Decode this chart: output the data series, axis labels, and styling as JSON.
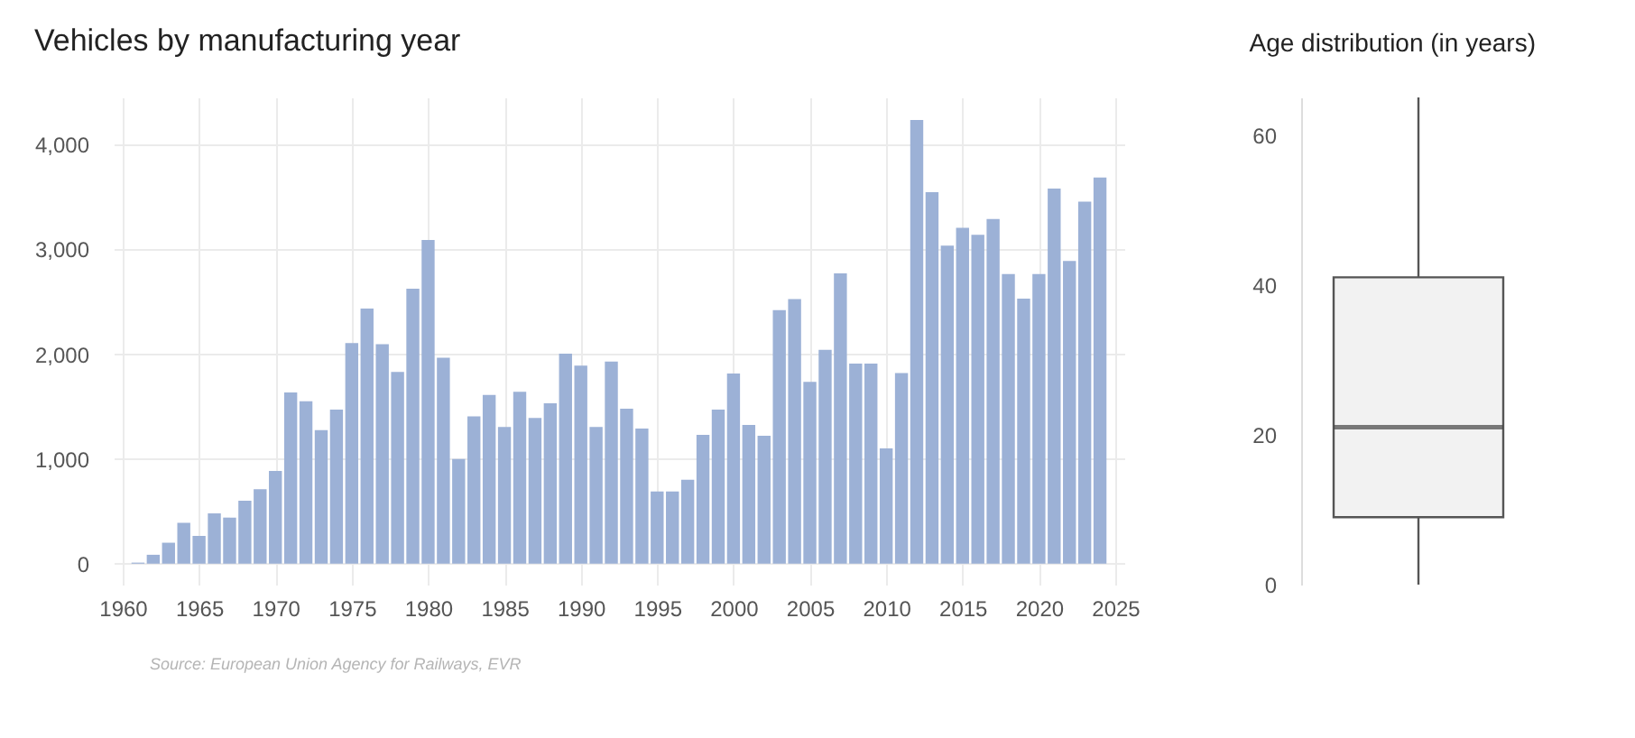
{
  "chart_data": [
    {
      "type": "bar",
      "title": "Vehicles by manufacturing year",
      "x": [
        1961,
        1962,
        1963,
        1964,
        1965,
        1966,
        1967,
        1968,
        1969,
        1970,
        1971,
        1972,
        1973,
        1974,
        1975,
        1976,
        1977,
        1978,
        1979,
        1980,
        1981,
        1982,
        1983,
        1984,
        1985,
        1986,
        1987,
        1988,
        1989,
        1990,
        1991,
        1992,
        1993,
        1994,
        1995,
        1996,
        1997,
        1998,
        1999,
        2000,
        2001,
        2002,
        2003,
        2004,
        2005,
        2006,
        2007,
        2008,
        2009,
        2010,
        2011,
        2012,
        2013,
        2014,
        2015,
        2016,
        2017,
        2018,
        2019,
        2020,
        2021,
        2022,
        2023,
        2024
      ],
      "values": [
        10,
        85,
        200,
        390,
        265,
        480,
        440,
        600,
        710,
        885,
        1635,
        1550,
        1275,
        1470,
        2105,
        2435,
        2095,
        1830,
        2625,
        3090,
        1965,
        1000,
        1405,
        1610,
        1305,
        1640,
        1390,
        1530,
        2005,
        1890,
        1305,
        1930,
        1480,
        1290,
        690,
        690,
        800,
        1230,
        1470,
        1815,
        1325,
        1220,
        2420,
        2525,
        1735,
        2040,
        2770,
        1910,
        1910,
        1100,
        1820,
        4235,
        3545,
        3035,
        3205,
        3140,
        3290,
        2765,
        2530,
        2765,
        3580,
        2890,
        3455,
        3685
      ],
      "color": "#9cb1d6",
      "xlim": [
        1960,
        2025
      ],
      "xticks": [
        1960,
        1965,
        1970,
        1975,
        1980,
        1985,
        1990,
        1995,
        2000,
        2005,
        2010,
        2015,
        2020,
        2025
      ],
      "ylim": [
        -200,
        4450
      ],
      "yticks": [
        0,
        {
          "value": 1000,
          "label": "1,000"
        },
        {
          "value": 2000,
          "label": "2,000"
        },
        {
          "value": 3000,
          "label": "3,000"
        },
        {
          "value": 4000,
          "label": "4,000"
        }
      ],
      "grid": true,
      "annotations": [
        "Source: European Union Agency for Railways, EVR"
      ]
    },
    {
      "type": "box",
      "title": "Age distribution (in years)",
      "categories": [
        null
      ],
      "boxes": [
        {
          "low": 0,
          "q1": 9,
          "median": 21,
          "q3": 41,
          "high": 65
        }
      ],
      "ylim": [
        0,
        65
      ],
      "yticks": [
        0,
        20,
        40,
        60
      ],
      "grid": false,
      "tick_labels": "y"
    }
  ]
}
